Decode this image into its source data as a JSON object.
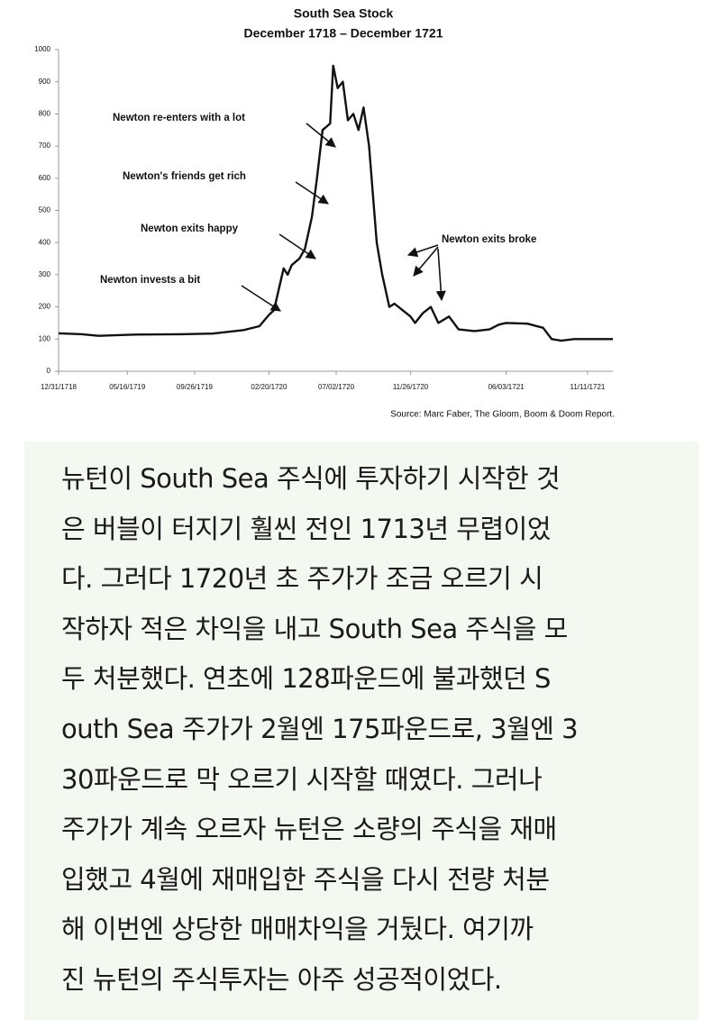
{
  "chart_data": {
    "type": "line",
    "title": "South Sea Stock",
    "subtitle": "December 1718 – December 1721",
    "source": "Source: Marc Faber, The Gloom, Boom & Doom Report.",
    "x": [
      "12/31/1718",
      "02/15/1719",
      "03/20/1719",
      "06/01/1719",
      "09/01/1719",
      "11/01/1719",
      "01/01/1720",
      "02/01/1720",
      "02/20/1720",
      "03/01/1720",
      "03/20/1720",
      "03/28/1720",
      "04/05/1720",
      "04/20/1720",
      "05/01/1720",
      "05/15/1720",
      "05/25/1720",
      "06/05/1720",
      "06/20/1720",
      "06/26/1720",
      "07/05/1720",
      "07/15/1720",
      "07/25/1720",
      "08/05/1720",
      "08/15/1720",
      "08/25/1720",
      "09/05/1720",
      "09/20/1720",
      "10/01/1720",
      "10/15/1720",
      "10/25/1720",
      "11/10/1720",
      "11/26/1720",
      "12/05/1720",
      "12/20/1720",
      "01/05/1721",
      "01/20/1721",
      "02/10/1721",
      "03/01/1721",
      "04/01/1721",
      "05/01/1721",
      "05/20/1721",
      "06/03/1721",
      "07/15/1721",
      "08/15/1721",
      "09/01/1721",
      "09/20/1721",
      "10/15/1721",
      "11/11/1721",
      "12/31/1721"
    ],
    "series": [
      {
        "color": "#111111",
        "values": [
          118,
          115,
          110,
          114,
          115,
          117,
          128,
          140,
          175,
          190,
          320,
          300,
          330,
          350,
          380,
          480,
          600,
          750,
          770,
          950,
          880,
          900,
          780,
          800,
          750,
          820,
          700,
          400,
          300,
          200,
          210,
          190,
          170,
          150,
          180,
          200,
          150,
          170,
          130,
          125,
          130,
          145,
          150,
          148,
          135,
          100,
          95,
          100,
          100,
          100
        ]
      }
    ],
    "xlim": [
      "12/31/1718",
      "12/31/1721"
    ],
    "xticks": [
      "12/31/1718",
      "05/16/1719",
      "09/26/1719",
      "02/20/1720",
      "07/02/1720",
      "11/26/1720",
      "06/03/1721",
      "11/11/1721"
    ],
    "ylim": [
      0,
      1000
    ],
    "yticks": [
      0,
      100,
      200,
      300,
      400,
      500,
      600,
      700,
      800,
      900,
      1000
    ],
    "annotations": [
      "Newton re-enters with a lot",
      "Newton's friends get rich",
      "Newton exits happy",
      "Newton invests a bit",
      "Newton exits broke"
    ]
  },
  "article": {
    "lines": [
      "뉴턴이 South Sea 주식에 투자하기 시작한 것",
      "은 버블이 터지기 훨씬 전인 1713년 무렵이었",
      "다. 그러다 1720년 초 주가가 조금 오르기 시",
      "작하자 적은 차익을 내고 South Sea 주식을 모",
      "두 처분했다. 연초에 128파운드에 불과했던 S",
      "outh Sea 주가가 2월엔 175파운드로, 3월엔 3",
      "30파운드로 막 오르기 시작할 때였다. 그러나",
      "주가가 계속 오르자 뉴턴은 소량의 주식을 재매",
      "입했고 4월에 재매입한 주식을 다시 전량 처분",
      "해 이번엔 상당한 매매차익을 거뒀다. 여기까",
      "진 뉴턴의 주식투자는 아주 성공적이었다."
    ]
  }
}
